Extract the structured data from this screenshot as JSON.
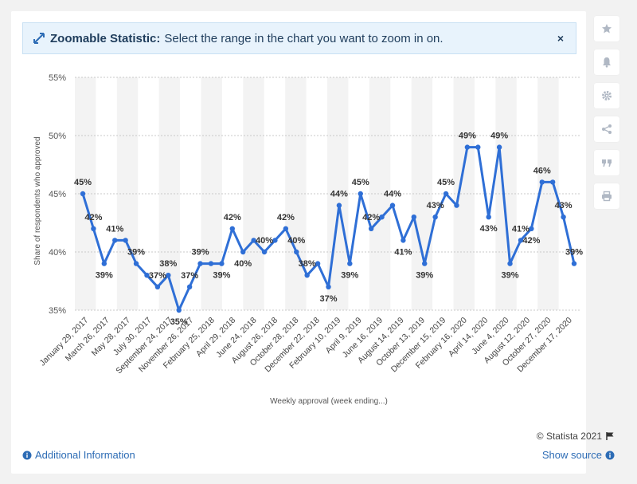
{
  "banner": {
    "title_strong": "Zoomable Statistic:",
    "title_rest": "Select the range in the chart you want to zoom in on.",
    "close": "×"
  },
  "sidebar": [
    "star-icon",
    "bell-icon",
    "gear-icon",
    "share-icon",
    "quote-icon",
    "print-icon"
  ],
  "footer": {
    "copyright": "© Statista 2021",
    "additional_info": "Additional Information",
    "show_source": "Show source"
  },
  "colors": {
    "line": "#2f6fd6",
    "band": "#f3f3f3",
    "grid": "#c9c9c9",
    "text": "#333333",
    "link": "#2d6cb5"
  },
  "chart_data": {
    "type": "line",
    "xlabel": "Weekly approval (week ending...)",
    "ylabel": "Share of respondents who approved",
    "ylim": [
      35,
      55
    ],
    "yticks": [
      35,
      40,
      45,
      50,
      55
    ],
    "ytick_labels": [
      "35%",
      "40%",
      "45%",
      "50%",
      "55%"
    ],
    "xtick_labels": [
      "January 29, 2017",
      "March 26, 2017",
      "May 28, 2017",
      "July 30, 2017",
      "September 24, 2017",
      "November 26, 2017",
      "February 25, 2018",
      "April 29, 2018",
      "June 24, 2018",
      "August 26, 2018",
      "October 28, 2018",
      "December 22, 2018",
      "February 10, 2019",
      "April 9, 2019",
      "June 16, 2019",
      "August 14, 2019",
      "October 13, 2019",
      "December 15, 2019",
      "February 16, 2020",
      "April 14, 2020",
      "June 4, 2020",
      "August 12, 2020",
      "October 27, 2020",
      "December 17, 2020"
    ],
    "series": [
      {
        "values": [
          45,
          42,
          39,
          41,
          41,
          39,
          38,
          37,
          38,
          35,
          37,
          39,
          39,
          39,
          42,
          40,
          41,
          40,
          41,
          42,
          40,
          38,
          39,
          37,
          44,
          39,
          45,
          42,
          43,
          44,
          41,
          43,
          39,
          43,
          45,
          44,
          49,
          49,
          43,
          49,
          39,
          41,
          42,
          46,
          46,
          43,
          39
        ],
        "labels": [
          "45%",
          "42%",
          "39%",
          "41%",
          "",
          "39%",
          "",
          "37%",
          "38%",
          "35%",
          "37%",
          "39%",
          "",
          "39%",
          "42%",
          "40%",
          "",
          "40%",
          "",
          "42%",
          "40%",
          "38%",
          "",
          "37%",
          "44%",
          "39%",
          "45%",
          "42%",
          "",
          "44%",
          "41%",
          "",
          "39%",
          "43%",
          "45%",
          "",
          "49%",
          "",
          "43%",
          "49%",
          "39%",
          "41%",
          "42%",
          "46%",
          "",
          "43%",
          "39%"
        ]
      }
    ],
    "label_above": [
      true,
      true,
      false,
      true,
      true,
      true,
      false,
      true,
      true,
      false,
      true,
      true,
      true,
      false,
      true,
      false,
      true,
      true,
      true,
      true,
      true,
      true,
      true,
      false,
      true,
      false,
      true,
      true,
      true,
      true,
      false,
      true,
      false,
      true,
      true,
      true,
      true,
      true,
      false,
      true,
      false,
      true,
      false,
      true,
      true,
      true,
      true
    ],
    "grid": true
  }
}
